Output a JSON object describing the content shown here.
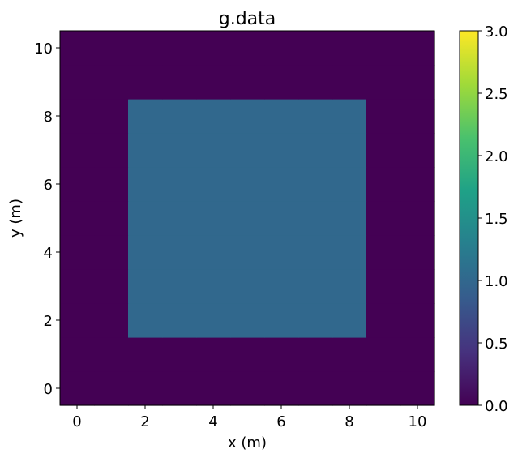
{
  "chart_data": {
    "type": "heatmap",
    "title": "g.data",
    "xlabel": "x (m)",
    "ylabel": "y (m)",
    "xlim": [
      -0.5,
      10.5
    ],
    "ylim": [
      -0.5,
      10.5
    ],
    "x_ticks": [
      0,
      2,
      4,
      6,
      8,
      10
    ],
    "y_ticks": [
      0,
      2,
      4,
      6,
      8,
      10
    ],
    "colormap": "viridis",
    "clim": [
      0.0,
      3.0
    ],
    "colorbar_ticks": [
      "0.0",
      "0.5",
      "1.0",
      "1.5",
      "2.0",
      "2.5",
      "3.0"
    ],
    "grid": false,
    "rows_y": [
      0,
      1,
      2,
      3,
      4,
      5,
      6,
      7,
      8,
      9,
      10
    ],
    "cols_x": [
      0,
      1,
      2,
      3,
      4,
      5,
      6,
      7,
      8,
      9,
      10
    ],
    "values": [
      [
        0,
        0,
        0,
        0,
        0,
        0,
        0,
        0,
        0,
        0,
        0
      ],
      [
        0,
        0,
        0,
        0,
        0,
        0,
        0,
        0,
        0,
        0,
        0
      ],
      [
        0,
        0,
        1,
        1,
        1,
        1,
        1,
        1,
        1,
        0,
        0
      ],
      [
        0,
        0,
        1,
        1,
        1,
        1,
        1,
        1,
        1,
        0,
        0
      ],
      [
        0,
        0,
        1,
        1,
        1,
        1,
        1,
        1,
        1,
        0,
        0
      ],
      [
        0,
        0,
        1,
        1,
        1,
        1,
        1,
        1,
        1,
        0,
        0
      ],
      [
        0,
        0,
        1,
        1,
        1,
        1,
        1,
        1,
        1,
        0,
        0
      ],
      [
        0,
        0,
        1,
        1,
        1,
        1,
        1,
        1,
        1,
        0,
        0
      ],
      [
        0,
        0,
        1,
        1,
        1,
        1,
        1,
        1,
        1,
        0,
        0
      ],
      [
        0,
        0,
        0,
        0,
        0,
        0,
        0,
        0,
        0,
        0,
        0
      ],
      [
        0,
        0,
        0,
        0,
        0,
        0,
        0,
        0,
        0,
        0,
        0
      ]
    ]
  }
}
